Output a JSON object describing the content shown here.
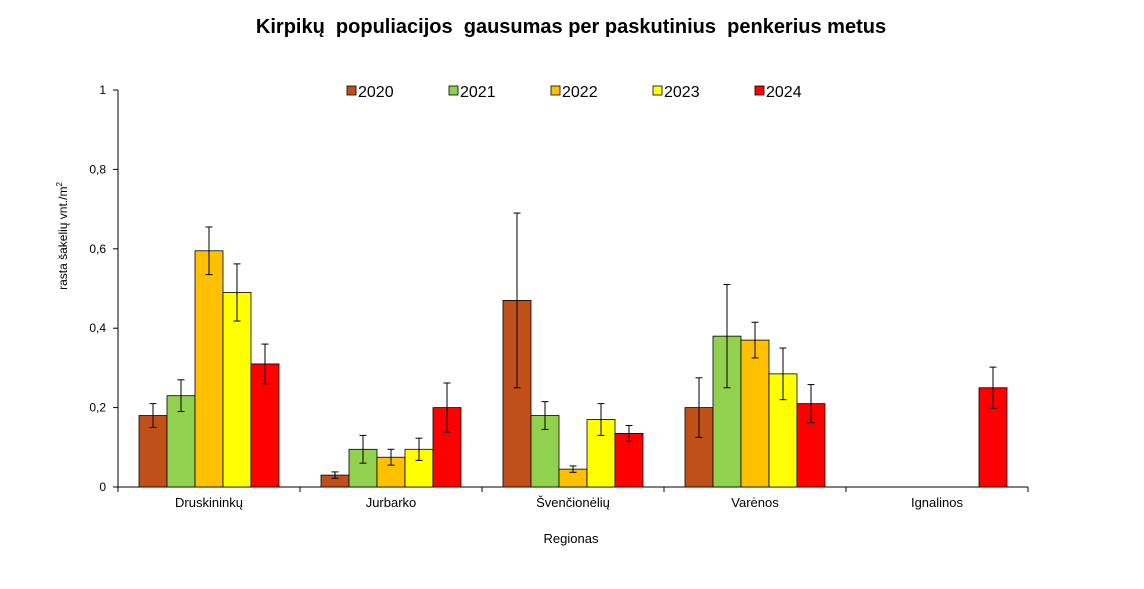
{
  "chart_data": {
    "type": "bar",
    "title": "Kirpikų  populiacijos  gausumas per paskutinius  penkerius metus",
    "xlabel": "Regionas",
    "ylabel_text": "rasta šakelių vnt./m",
    "ylabel_sup": "2",
    "ylim": [
      0,
      1
    ],
    "yticks": [
      "0",
      "0,2",
      "0,4",
      "0,6",
      "0,8",
      "1"
    ],
    "ytick_values": [
      0,
      0.2,
      0.4,
      0.6,
      0.8,
      1
    ],
    "grid": false,
    "legend_position": "top",
    "categories": [
      "Druskininkų",
      "Jurbarko",
      "Švenčionėlių",
      "Varėnos",
      "Ignalinos"
    ],
    "series": [
      {
        "name": "2020",
        "color": "#C0501A",
        "values": [
          0.18,
          0.03,
          0.47,
          0.2,
          null
        ],
        "err": [
          0.03,
          0.008,
          0.22,
          0.075,
          null
        ]
      },
      {
        "name": "2021",
        "color": "#92D050",
        "values": [
          0.23,
          0.095,
          0.18,
          0.38,
          null
        ],
        "err": [
          0.04,
          0.035,
          0.035,
          0.13,
          null
        ]
      },
      {
        "name": "2022",
        "color": "#FFC000",
        "values": [
          0.595,
          0.075,
          0.045,
          0.37,
          null
        ],
        "err": [
          0.06,
          0.02,
          0.008,
          0.045,
          null
        ]
      },
      {
        "name": "2023",
        "color": "#FFFF00",
        "values": [
          0.49,
          0.095,
          0.17,
          0.285,
          null
        ],
        "err": [
          0.072,
          0.028,
          0.04,
          0.065,
          null
        ]
      },
      {
        "name": "2024",
        "color": "#FF0000",
        "values": [
          0.31,
          0.2,
          0.135,
          0.21,
          0.25
        ],
        "err": [
          0.05,
          0.062,
          0.02,
          0.048,
          0.052
        ]
      }
    ]
  }
}
